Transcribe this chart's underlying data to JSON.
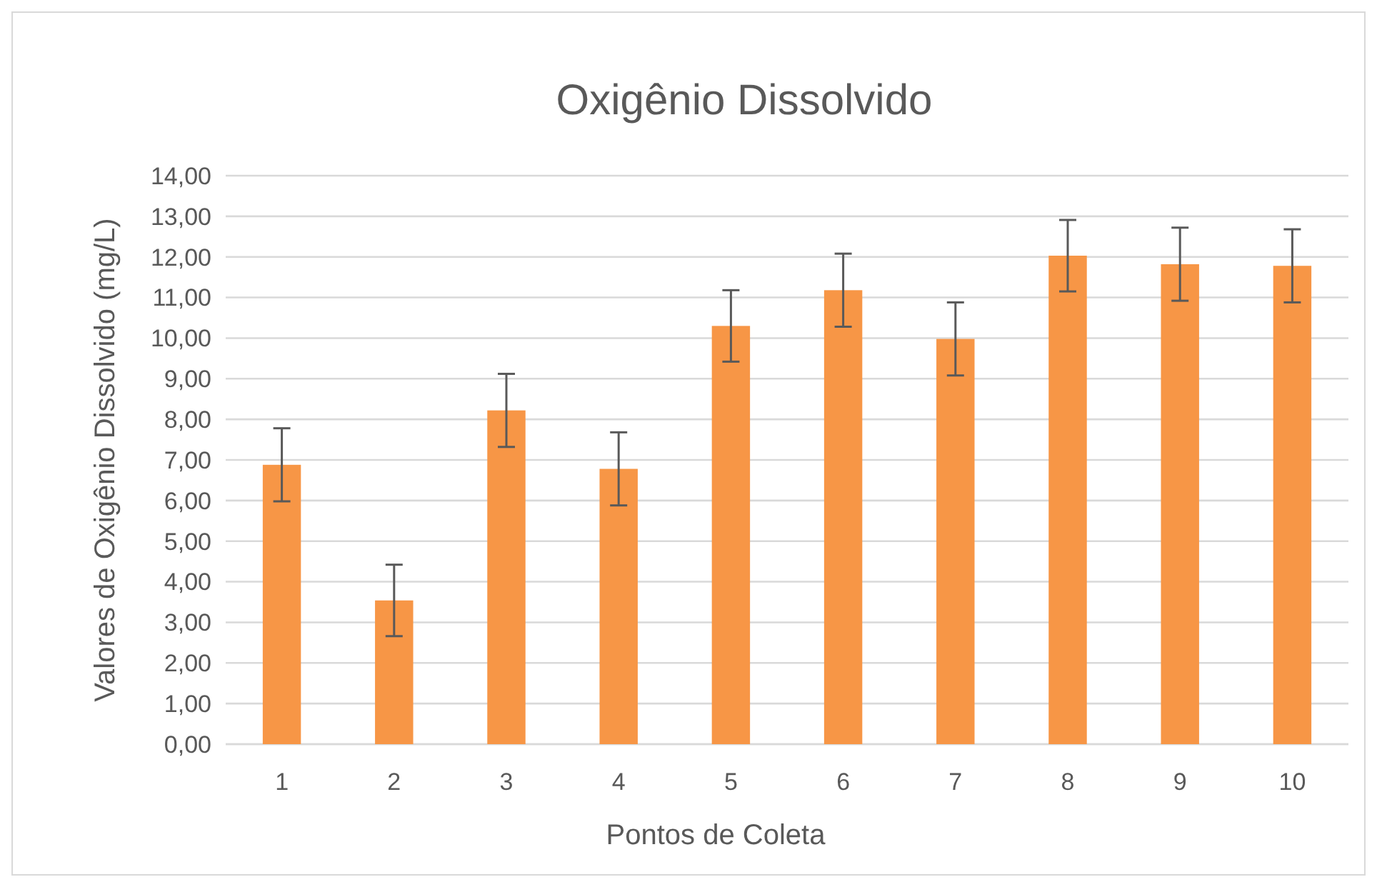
{
  "chart_data": {
    "type": "bar",
    "title": "Oxigênio Dissolvido",
    "xlabel": "Pontos de Coleta",
    "ylabel": "Valores de Oxigênio Dissolvido (mg/L)",
    "categories": [
      "1",
      "2",
      "3",
      "4",
      "5",
      "6",
      "7",
      "8",
      "9",
      "10"
    ],
    "values": [
      6.88,
      3.54,
      8.22,
      6.78,
      10.3,
      11.18,
      9.98,
      12.03,
      11.82,
      11.78
    ],
    "errors": [
      0.9,
      0.88,
      0.9,
      0.9,
      0.88,
      0.9,
      0.9,
      0.88,
      0.9,
      0.9
    ],
    "color": "#f79646",
    "ylim": [
      0,
      14
    ],
    "yticks": [
      {
        "value": 0,
        "label": "0,00"
      },
      {
        "value": 1,
        "label": "1,00"
      },
      {
        "value": 2,
        "label": "2,00"
      },
      {
        "value": 3,
        "label": "3,00"
      },
      {
        "value": 4,
        "label": "4,00"
      },
      {
        "value": 5,
        "label": "5,00"
      },
      {
        "value": 6,
        "label": "6,00"
      },
      {
        "value": 7,
        "label": "7,00"
      },
      {
        "value": 8,
        "label": "8,00"
      },
      {
        "value": 9,
        "label": "9,00"
      },
      {
        "value": 10,
        "label": "10,00"
      },
      {
        "value": 11,
        "label": "11,00"
      },
      {
        "value": 12,
        "label": "12,00"
      },
      {
        "value": 13,
        "label": "13,00"
      },
      {
        "value": 14,
        "label": "14,00"
      }
    ],
    "grid": "y"
  }
}
